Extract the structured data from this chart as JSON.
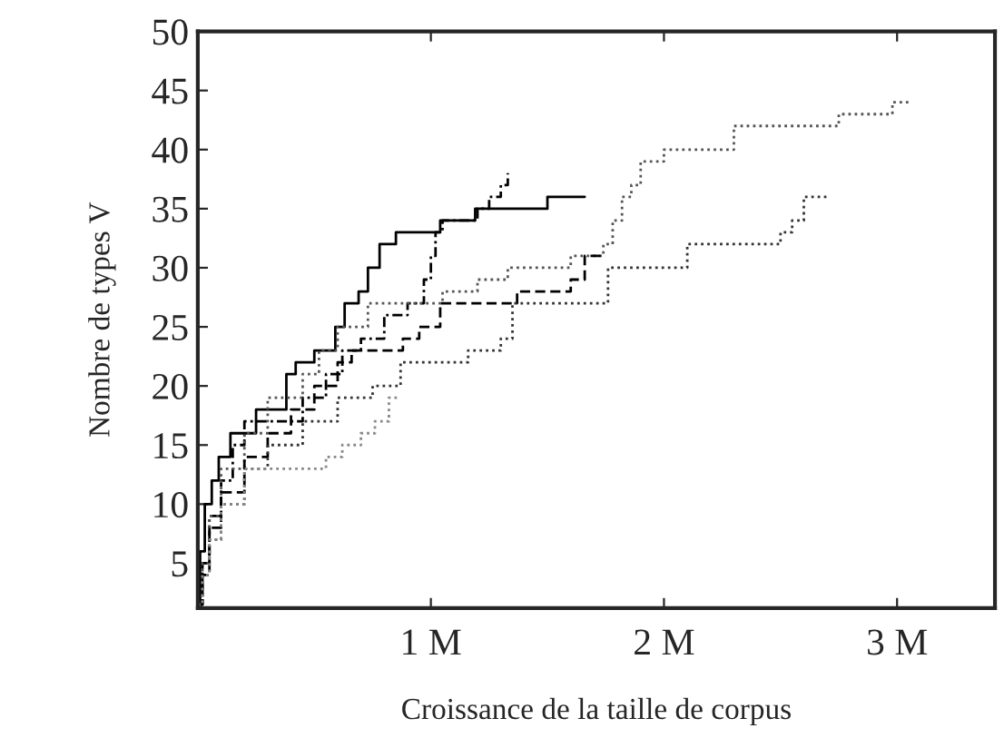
{
  "chart_data": {
    "type": "step",
    "xlabel": "Croissance de la taille de corpus",
    "ylabel": "Nombre de types V",
    "xlim": [
      0,
      3.42
    ],
    "ylim": [
      1.2,
      50
    ],
    "xticks": [
      {
        "value": 1,
        "label": "1 M"
      },
      {
        "value": 2,
        "label": "2 M"
      },
      {
        "value": 3,
        "label": "3 M"
      }
    ],
    "yticks": [
      5,
      10,
      15,
      20,
      25,
      30,
      35,
      40,
      45,
      50
    ],
    "marker": "none",
    "series": [
      {
        "color": "#000000",
        "line_style": "solid",
        "x": [
          0,
          0.01,
          0.03,
          0.06,
          0.09,
          0.14,
          0.25,
          0.38,
          0.42,
          0.5,
          0.59,
          0.63,
          0.69,
          0.73,
          0.78,
          0.85,
          1.04,
          1.19,
          1.5,
          1.66
        ],
        "values": [
          1.5,
          6,
          10,
          12,
          14,
          16,
          18,
          21,
          22,
          23,
          25,
          27,
          28,
          30,
          32,
          33,
          34,
          35,
          36,
          36
        ]
      },
      {
        "color": "#000000",
        "line_style": "dashdot",
        "x": [
          0,
          0.02,
          0.05,
          0.1,
          0.15,
          0.2,
          0.45,
          0.55,
          0.62,
          0.7,
          0.8,
          0.9,
          0.97,
          1.0,
          1.02,
          1.05,
          1.2,
          1.25,
          1.3,
          1.33
        ],
        "values": [
          1.5,
          5,
          9,
          12,
          15,
          17,
          19,
          21,
          23,
          24,
          26,
          27,
          29,
          31,
          33,
          34,
          35,
          36,
          37,
          38
        ]
      },
      {
        "color": "#555555",
        "line_style": "dotted",
        "x": [
          0,
          0.02,
          0.05,
          0.1,
          0.2,
          0.3,
          0.45,
          0.52,
          0.6,
          0.73,
          1.05,
          1.2,
          1.33,
          1.6,
          1.74,
          1.78,
          1.82,
          1.86,
          1.9,
          2.0,
          2.3,
          2.75,
          2.98,
          3.05
        ],
        "values": [
          1.5,
          5,
          9,
          13,
          16,
          19,
          21,
          23,
          25,
          27,
          28,
          29,
          30,
          31,
          32,
          34,
          36,
          37,
          39,
          40,
          42,
          43,
          44,
          44
        ]
      },
      {
        "color": "#000000",
        "line_style": "dashed",
        "x": [
          0,
          0.02,
          0.05,
          0.1,
          0.2,
          0.3,
          0.4,
          0.5,
          0.6,
          0.66,
          0.88,
          0.95,
          1.04,
          1.37,
          1.6,
          1.66,
          1.75
        ],
        "values": [
          1.5,
          4,
          8,
          11,
          14,
          16,
          18,
          20,
          22,
          23,
          24,
          25,
          27,
          28,
          29,
          31,
          31
        ]
      },
      {
        "color": "#333333",
        "line_style": "dotted",
        "x": [
          0,
          0.02,
          0.05,
          0.1,
          0.2,
          0.3,
          0.45,
          0.6,
          0.75,
          0.87,
          1.07,
          1.16,
          1.3,
          1.35,
          1.76,
          2.1,
          2.5,
          2.55,
          2.6,
          2.7
        ],
        "values": [
          1.5,
          4,
          7,
          10,
          13,
          15,
          17,
          19,
          20,
          22,
          22,
          23,
          24,
          27,
          30,
          32,
          33,
          34,
          36,
          36
        ]
      },
      {
        "color": "#888888",
        "line_style": "dotted",
        "x": [
          0,
          0.02,
          0.05,
          0.1,
          0.2,
          0.46,
          0.55,
          0.62,
          0.7,
          0.76,
          0.82,
          0.87
        ],
        "values": [
          1.5,
          4,
          7,
          10,
          13,
          13,
          14,
          15,
          16,
          17,
          19,
          19
        ]
      }
    ]
  }
}
